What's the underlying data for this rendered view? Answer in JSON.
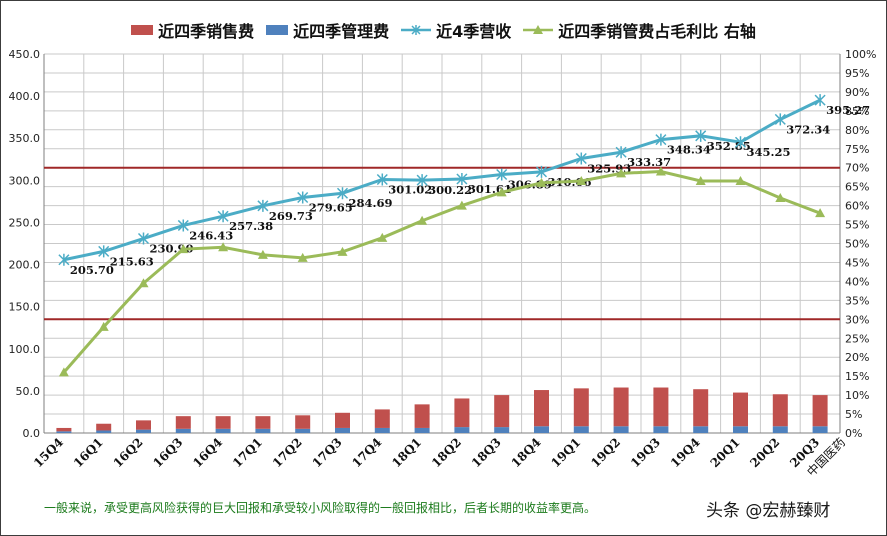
{
  "chart_data": {
    "type": "bar+line",
    "categories": [
      "15Q4",
      "16Q1",
      "16Q2",
      "16Q3",
      "16Q4",
      "17Q1",
      "17Q2",
      "17Q3",
      "17Q4",
      "18Q1",
      "18Q2",
      "18Q3",
      "18Q4",
      "19Q1",
      "19Q2",
      "19Q3",
      "19Q4",
      "20Q1",
      "20Q2",
      "20Q3"
    ],
    "ylim": [
      0,
      450
    ],
    "y2lim": [
      0,
      1.0
    ],
    "y_ticks": [
      "0.0",
      "50.0",
      "100.0",
      "150.0",
      "200.0",
      "250.0",
      "300.0",
      "350.0",
      "400.0",
      "450.0"
    ],
    "y2_ticks": [
      "0%",
      "5%",
      "10%",
      "15%",
      "20%",
      "25%",
      "30%",
      "35%",
      "40%",
      "45%",
      "50%",
      "55%",
      "60%",
      "65%",
      "70%",
      "75%",
      "80%",
      "85%",
      "90%",
      "95%",
      "100%"
    ],
    "grid": true,
    "legend_position": "top",
    "series": [
      {
        "name": "近四季销售费",
        "type": "bar",
        "color": "#c0504d",
        "values": [
          4,
          8,
          11,
          15,
          15,
          15,
          16,
          18,
          22,
          28,
          34,
          38,
          43,
          45,
          46,
          46,
          44,
          40,
          38,
          37
        ]
      },
      {
        "name": "近四季管理费",
        "type": "bar",
        "color": "#4f81bd",
        "values": [
          2,
          3,
          4,
          5,
          5,
          5,
          5,
          6,
          6,
          6,
          7,
          7,
          8,
          8,
          8,
          8,
          8,
          8,
          8,
          8
        ]
      },
      {
        "name": "近4季营收",
        "type": "line",
        "color": "#4bacc6",
        "marker": "star",
        "values": [
          205.7,
          215.63,
          230.9,
          246.43,
          257.38,
          269.73,
          279.65,
          284.69,
          301.02,
          300.22,
          301.61,
          306.89,
          310.06,
          325.93,
          333.37,
          348.34,
          352.85,
          345.25,
          372.34,
          395.27
        ],
        "labels": [
          "205.70",
          "215.63",
          "230.90",
          "246.43",
          "257.38",
          "269.73",
          "279.65",
          "284.69",
          "301.02",
          "300.22",
          "301.61",
          "306.89",
          "310.06",
          "325.93",
          "333.37",
          "348.34",
          "352.85",
          "345.25",
          "372.34",
          "395.27"
        ]
      },
      {
        "name": "近四季销管费占毛利比 右轴",
        "type": "line",
        "color": "#9bbb59",
        "marker": "triangle",
        "axis": "right",
        "values": [
          0.16,
          0.28,
          0.395,
          0.485,
          0.49,
          0.47,
          0.462,
          0.478,
          0.515,
          0.56,
          0.6,
          0.635,
          0.66,
          0.665,
          0.685,
          0.69,
          0.665,
          0.665,
          0.62,
          0.58
        ]
      }
    ],
    "reference_lines": [
      0.7,
      0.3
    ]
  },
  "footnote": "一般来说，承受更高风险获得的巨大回报和承受较小风险取得的一般回报相比，后者长期的收益率更高。",
  "watermark": "头条 @宏赫臻财",
  "source_mark": "中国医药",
  "colors": {
    "grid": "#c9c9c9",
    "axis": "#7f7f7f",
    "reference": "#a02828"
  }
}
